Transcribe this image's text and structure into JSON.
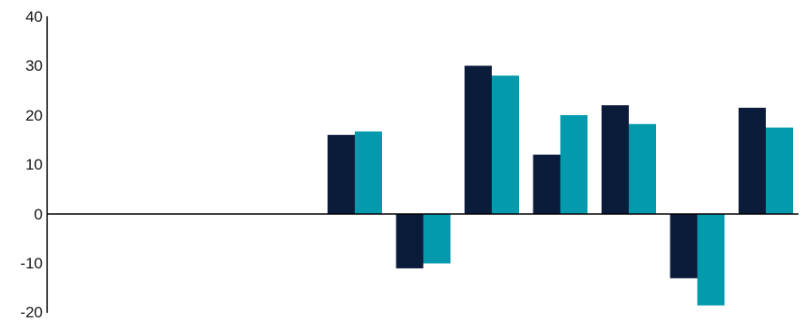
{
  "chart_data": {
    "type": "bar",
    "title": "",
    "xlabel": "",
    "ylabel": "",
    "ylim": [
      -20,
      40
    ],
    "yticks": [
      40,
      30,
      20,
      10,
      0,
      -10,
      -20
    ],
    "ytick_labels": [
      "40",
      "30",
      "20",
      "10",
      "0",
      "-10",
      "-20"
    ],
    "grid": false,
    "legend": "none",
    "categories": [
      "",
      "",
      "",
      "",
      "",
      "",
      "",
      "",
      "",
      "",
      ""
    ],
    "series": [
      {
        "color": "#0b1b3a",
        "values": [
          null,
          null,
          null,
          null,
          16,
          -11,
          30,
          12,
          22,
          -13,
          21.5
        ]
      },
      {
        "color": "#049aad",
        "values": [
          null,
          null,
          null,
          null,
          16.7,
          -10,
          28,
          20,
          18.2,
          -18.5,
          17.5
        ]
      }
    ]
  }
}
